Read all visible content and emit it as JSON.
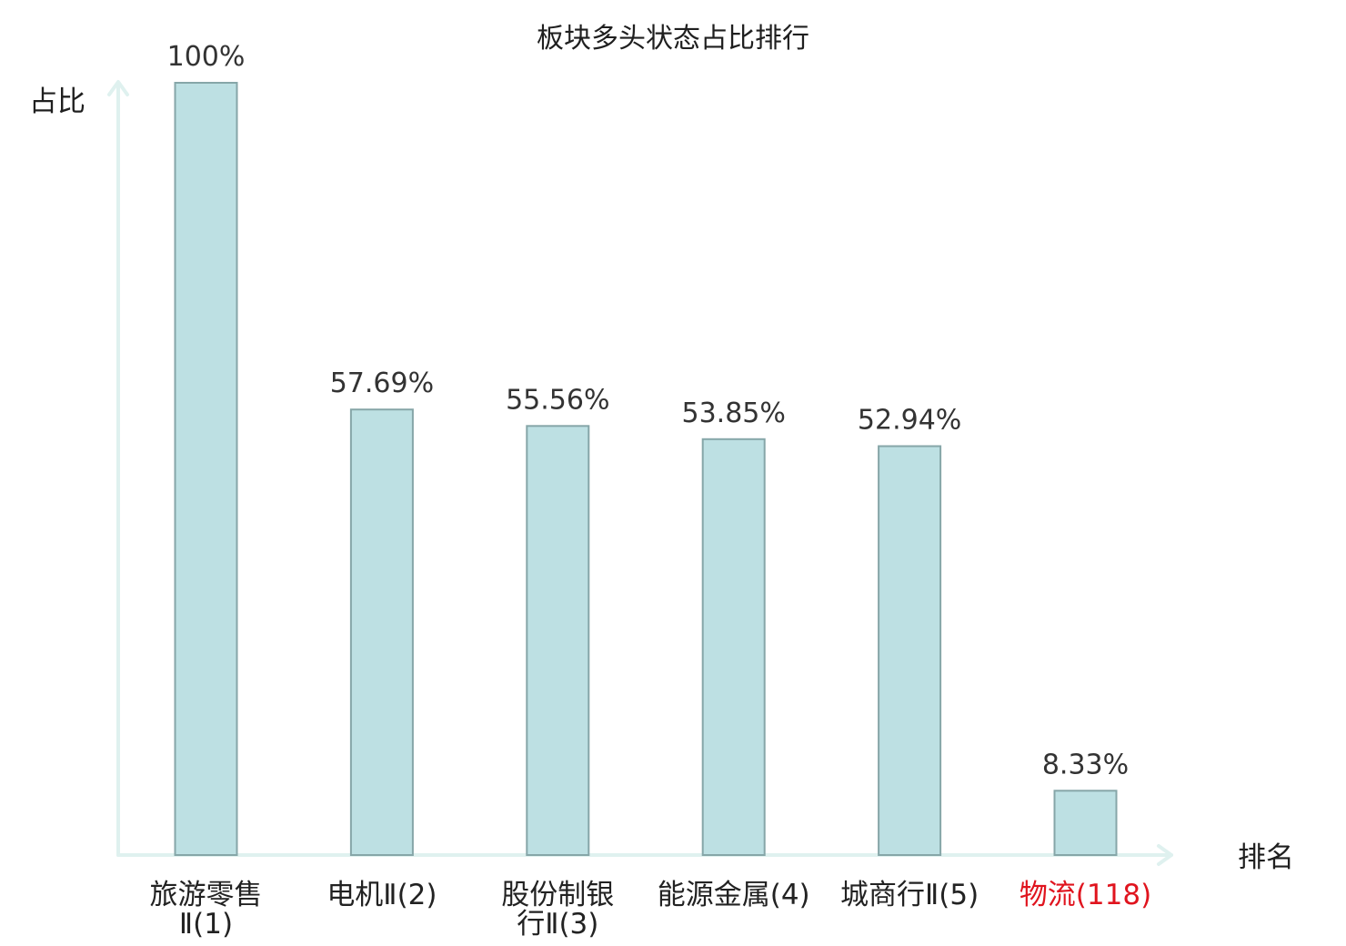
{
  "chart_data": {
    "type": "bar",
    "title": "板块多头状态占比排行",
    "xlabel": "排名",
    "ylabel": "占比",
    "ylim": [
      0,
      100
    ],
    "grid": false,
    "categories": [
      [
        "旅游零售",
        "Ⅱ(1)"
      ],
      [
        "电机Ⅱ(2)"
      ],
      [
        "股份制银",
        "行Ⅱ(3)"
      ],
      [
        "能源金属(4)"
      ],
      [
        "城商行Ⅱ(5)"
      ],
      [
        "物流(118)"
      ]
    ],
    "values": [
      100,
      57.69,
      55.56,
      53.85,
      52.94,
      8.33
    ],
    "value_labels": [
      "100%",
      "57.69%",
      "55.56%",
      "53.85%",
      "52.94%",
      "8.33%"
    ],
    "highlight_index": 5
  },
  "colors": {
    "bar_fill": "#bde0e3",
    "bar_stroke": "#86a6a8",
    "axis": "#dff1ef",
    "text": "#222222",
    "highlight_text": "#e0141e"
  }
}
